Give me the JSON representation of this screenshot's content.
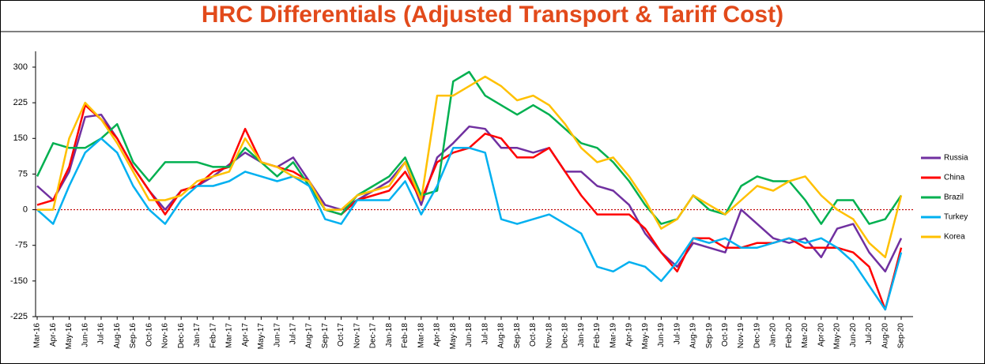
{
  "chart_data": {
    "type": "line",
    "title": "HRC Differentials (Adjusted Transport & Tariff Cost)",
    "categories": [
      "Mar-16",
      "Apr-16",
      "May-16",
      "Jun-16",
      "Jul-16",
      "Aug-16",
      "Sep-16",
      "Oct-16",
      "Nov-16",
      "Dec-16",
      "Jan-17",
      "Feb-17",
      "Mar-17",
      "Apr-17",
      "May-17",
      "Jun-17",
      "Jul-17",
      "Aug-17",
      "Sep-17",
      "Oct-17",
      "Nov-17",
      "Dec-17",
      "Jan-18",
      "Feb-18",
      "Mar-18",
      "Apr-18",
      "May-18",
      "Jun-18",
      "Jul-18",
      "Aug-18",
      "Sep-18",
      "Oct-18",
      "Nov-18",
      "Dec-18",
      "Jan-19",
      "Feb-19",
      "Mar-19",
      "Apr-19",
      "May-19",
      "Jun-19",
      "Jul-19",
      "Aug-19",
      "Sep-19",
      "Oct-19",
      "Nov-19",
      "Dec-19",
      "Jan-20",
      "Feb-20",
      "Mar-20",
      "Apr-20",
      "May-20",
      "Jun-20",
      "Jul-20",
      "Aug-20",
      "Sep-20"
    ],
    "series": [
      {
        "name": "Russia",
        "color": "#7030a0",
        "values": [
          50,
          20,
          80,
          195,
          200,
          150,
          90,
          40,
          0,
          40,
          50,
          70,
          95,
          120,
          100,
          90,
          110,
          60,
          10,
          0,
          20,
          40,
          60,
          100,
          10,
          110,
          140,
          175,
          170,
          130,
          130,
          120,
          130,
          80,
          80,
          50,
          40,
          10,
          -50,
          -90,
          -120,
          -70,
          -80,
          -90,
          0,
          -30,
          -60,
          -70,
          -60,
          -100,
          -40,
          -30,
          -90,
          -130,
          -60
        ]
      },
      {
        "name": "China",
        "color": "#ff0000",
        "values": [
          10,
          20,
          90,
          220,
          190,
          150,
          90,
          40,
          -10,
          40,
          50,
          80,
          90,
          170,
          100,
          90,
          80,
          60,
          0,
          -10,
          20,
          30,
          40,
          80,
          20,
          100,
          120,
          130,
          160,
          150,
          110,
          110,
          130,
          80,
          30,
          -10,
          -10,
          -10,
          -40,
          -90,
          -130,
          -60,
          -60,
          -80,
          -80,
          -70,
          -70,
          -60,
          -80,
          -80,
          -80,
          -90,
          -120,
          -210,
          -80
        ]
      },
      {
        "name": "Brazil",
        "color": "#00b050",
        "values": [
          70,
          140,
          130,
          130,
          150,
          180,
          100,
          60,
          100,
          100,
          100,
          90,
          90,
          130,
          100,
          70,
          100,
          50,
          0,
          -10,
          30,
          50,
          70,
          110,
          30,
          40,
          270,
          290,
          240,
          220,
          200,
          220,
          200,
          170,
          140,
          130,
          100,
          60,
          10,
          -30,
          -20,
          30,
          0,
          -10,
          50,
          70,
          60,
          60,
          20,
          -30,
          20,
          20,
          -30,
          -20,
          30
        ]
      },
      {
        "name": "Turkey",
        "color": "#00b0f0",
        "values": [
          0,
          -30,
          50,
          120,
          150,
          120,
          50,
          0,
          -30,
          20,
          50,
          50,
          60,
          80,
          70,
          60,
          70,
          50,
          -20,
          -30,
          20,
          20,
          20,
          60,
          -10,
          50,
          130,
          130,
          120,
          -20,
          -30,
          -20,
          -10,
          -30,
          -50,
          -120,
          -130,
          -110,
          -120,
          -150,
          -110,
          -60,
          -70,
          -60,
          -80,
          -80,
          -70,
          -60,
          -70,
          -60,
          -80,
          -110,
          -160,
          -210,
          -90
        ]
      },
      {
        "name": "Korea",
        "color": "#ffc000",
        "values": [
          0,
          0,
          150,
          225,
          190,
          140,
          80,
          20,
          20,
          30,
          60,
          70,
          80,
          150,
          100,
          90,
          70,
          60,
          0,
          0,
          30,
          40,
          50,
          100,
          20,
          240,
          240,
          260,
          280,
          260,
          230,
          240,
          220,
          180,
          130,
          100,
          110,
          70,
          20,
          -40,
          -20,
          30,
          10,
          -10,
          20,
          50,
          40,
          60,
          70,
          30,
          0,
          -20,
          -70,
          -100,
          30
        ]
      }
    ],
    "ylim": [
      -225,
      300
    ],
    "yticks": [
      -225,
      -150,
      -75,
      0,
      75,
      150,
      225,
      300
    ],
    "grid": false,
    "zero_line_color": "#c00000",
    "legend": "right"
  }
}
